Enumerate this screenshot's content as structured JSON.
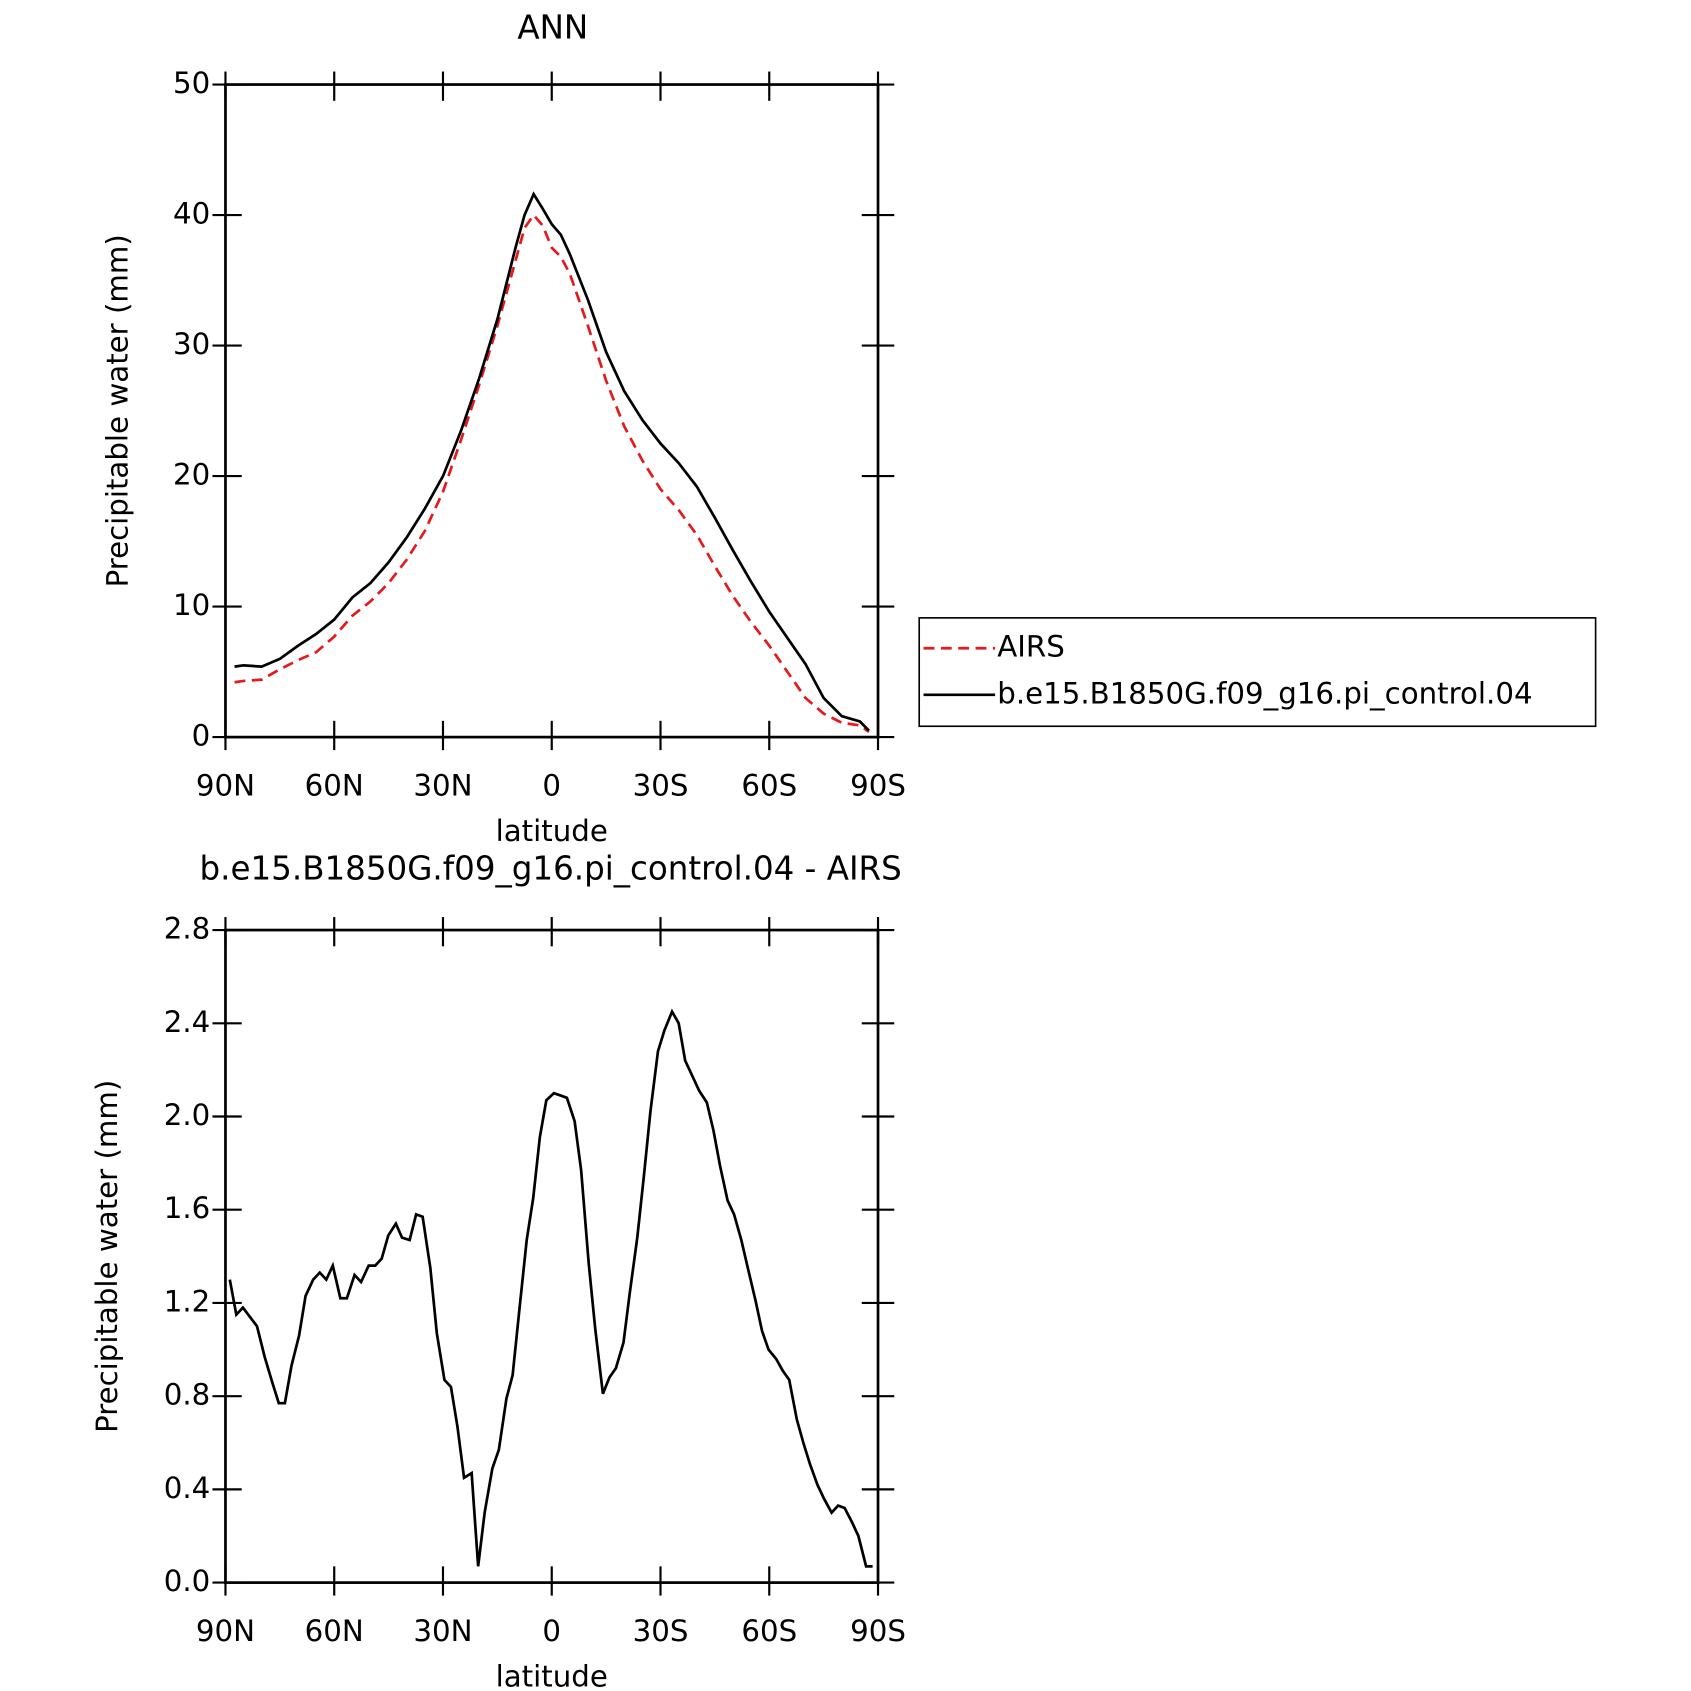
{
  "chart_data": [
    {
      "type": "line",
      "title": "ANN",
      "xlabel": "latitude",
      "ylabel": "Precipitable water (mm)",
      "x": [
        87.5,
        85,
        80,
        75,
        70,
        65,
        60,
        55,
        50,
        45,
        40,
        35,
        30,
        25,
        20,
        15,
        10,
        7.5,
        5,
        2.5,
        0,
        -2.5,
        -5,
        -10,
        -15,
        -20,
        -25,
        -30,
        -35,
        -40,
        -45,
        -50,
        -55,
        -60,
        -65,
        -70,
        -75,
        -80,
        -85,
        -87.5
      ],
      "series": [
        {
          "name": "AIRS",
          "color": "#e41a1c",
          "linestyle": "dashed",
          "values": [
            4.2,
            4.3,
            4.4,
            5.2,
            5.9,
            6.5,
            7.7,
            9.3,
            10.4,
            11.8,
            13.6,
            15.8,
            18.8,
            22.8,
            27.0,
            31.5,
            36.5,
            39.0,
            40.0,
            39.2,
            37.5,
            36.8,
            35.5,
            31.5,
            27.3,
            23.8,
            21.2,
            19.0,
            17.4,
            15.5,
            13.1,
            10.8,
            8.8,
            7.0,
            5.0,
            3.0,
            1.8,
            1.1,
            0.9,
            0.4
          ]
        },
        {
          "name": "b.e15.B1850G.f09_g16.pi_control.04",
          "color": "#000000",
          "linestyle": "solid",
          "values": [
            5.4,
            5.5,
            5.4,
            6.0,
            7.0,
            7.9,
            9.0,
            10.7,
            11.8,
            13.4,
            15.3,
            17.5,
            20.0,
            23.5,
            27.5,
            32.0,
            37.5,
            40.0,
            41.6,
            40.5,
            39.3,
            38.5,
            37.0,
            33.5,
            29.5,
            26.5,
            24.3,
            22.5,
            21.0,
            19.2,
            16.8,
            14.3,
            11.9,
            9.6,
            7.6,
            5.6,
            3.0,
            1.6,
            1.2,
            0.5
          ]
        }
      ],
      "xlim": [
        90,
        -90
      ],
      "xticks": [
        {
          "value": 90,
          "label": "90N"
        },
        {
          "value": 60,
          "label": "60N"
        },
        {
          "value": 30,
          "label": "30N"
        },
        0,
        {
          "value": -30,
          "label": "30S"
        },
        {
          "value": -60,
          "label": "60S"
        },
        {
          "value": -90,
          "label": "90S"
        }
      ],
      "ylim": [
        0,
        50
      ],
      "yticks": [
        0,
        10,
        20,
        30,
        40,
        50
      ],
      "legend": "right"
    },
    {
      "type": "line",
      "title": "b.e15.B1850G.f09_g16.pi_control.04 - AIRS",
      "xlabel": "latitude",
      "ylabel": "Precipitable water (mm)",
      "x": [
        88.8,
        87,
        85.2,
        81.3,
        79.2,
        77.1,
        75.3,
        73.6,
        71.8,
        69.7,
        67.9,
        65.8,
        64,
        62.2,
        60.4,
        58.3,
        56.5,
        54.4,
        52.6,
        50.5,
        48.7,
        46.9,
        45.1,
        43,
        41.3,
        39.2,
        37.4,
        35.6,
        33.5,
        31.7,
        29.6,
        27.8,
        26,
        24.2,
        22.1,
        20.3,
        18.5,
        16.4,
        14.6,
        12.5,
        10.8,
        9,
        6.9,
        5.1,
        3.3,
        1.5,
        -0.6,
        -2.4,
        -4.2,
        -6.3,
        -8.1,
        -10.2,
        -12,
        -14.1,
        -15.9,
        -17.7,
        -19.8,
        -21.5,
        -23.6,
        -25.4,
        -27.2,
        -29.3,
        -31.1,
        -33.2,
        -35,
        -36.8,
        -38.9,
        -40.7,
        -42.8,
        -44.6,
        -46.4,
        -48.5,
        -50.3,
        -52.3,
        -54.1,
        -56.2,
        -58,
        -59.8,
        -61.9,
        -63.7,
        -65.5,
        -67.6,
        -69.4,
        -71.2,
        -73.3,
        -75.1,
        -77.2,
        -79,
        -80.8,
        -82.8,
        -84.6,
        -86.7,
        -88.5
      ],
      "series": [
        {
          "color": "#000000",
          "linestyle": "solid",
          "values": [
            1.3,
            1.15,
            1.18,
            1.1,
            0.97,
            0.86,
            0.77,
            0.77,
            0.93,
            1.06,
            1.23,
            1.3,
            1.33,
            1.3,
            1.36,
            1.22,
            1.22,
            1.32,
            1.29,
            1.36,
            1.36,
            1.39,
            1.49,
            1.54,
            1.48,
            1.47,
            1.58,
            1.57,
            1.35,
            1.07,
            0.87,
            0.84,
            0.67,
            0.45,
            0.47,
            0.07,
            0.3,
            0.49,
            0.57,
            0.79,
            0.89,
            1.16,
            1.47,
            1.65,
            1.91,
            2.07,
            2.1,
            2.09,
            2.08,
            1.98,
            1.77,
            1.37,
            1.09,
            0.81,
            0.88,
            0.92,
            1.03,
            1.24,
            1.48,
            1.74,
            2.02,
            2.28,
            2.37,
            2.45,
            2.4,
            2.24,
            2.17,
            2.11,
            2.06,
            1.94,
            1.79,
            1.64,
            1.58,
            1.47,
            1.35,
            1.21,
            1.08,
            1.0,
            0.96,
            0.91,
            0.87,
            0.7,
            0.6,
            0.51,
            0.42,
            0.36,
            0.3,
            0.33,
            0.32,
            0.26,
            0.2,
            0.07,
            0.07
          ]
        }
      ],
      "xlim": [
        90,
        -90
      ],
      "xticks": [
        {
          "value": 90,
          "label": "90N"
        },
        {
          "value": 60,
          "label": "60N"
        },
        {
          "value": 30,
          "label": "30N"
        },
        0,
        {
          "value": -30,
          "label": "30S"
        },
        {
          "value": -60,
          "label": "60S"
        },
        {
          "value": -90,
          "label": "90S"
        }
      ],
      "ylim": [
        0,
        2.8
      ],
      "yticks": [
        {
          "value": 0,
          "label": "0.0"
        },
        0.4,
        0.8,
        1.2,
        1.6,
        {
          "value": 2,
          "label": "2.0"
        },
        2.4,
        2.8
      ]
    }
  ]
}
